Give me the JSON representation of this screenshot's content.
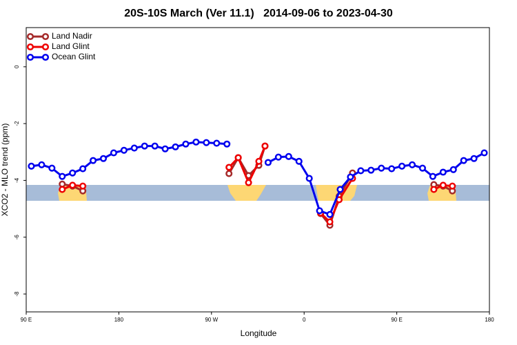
{
  "chart_data": {
    "type": "line",
    "title": "20S-10S March (Ver 11.1)   2014-09-06 to 2023-04-30",
    "x_label": "Longitude",
    "y_label": "XCO2 - MLO trend (ppm)",
    "xlim": [
      90,
      540
    ],
    "xticks": [
      {
        "value": 90,
        "label": "90 E"
      },
      180,
      {
        "value": 270,
        "label": "90 W"
      },
      {
        "value": 360,
        "label": "0"
      },
      {
        "value": 450,
        "label": "90 E"
      },
      180.0001
    ],
    "ylim": [
      -8.63,
      1.38
    ],
    "yticks": [
      0,
      -2,
      -4,
      -6,
      -8
    ],
    "legend": "top-left",
    "series": [
      {
        "name": "Land Nadir",
        "color": "#a52a2a",
        "x": [
          125,
          135,
          145,
          null,
          287,
          296,
          306,
          316,
          322,
          null,
          376,
          385,
          394,
          407,
          null,
          486,
          495,
          504
        ],
        "values": [
          -4.13,
          -4.2,
          -4.37,
          null,
          -3.76,
          -3.2,
          -3.83,
          -3.47,
          -2.79,
          null,
          -5.17,
          -5.58,
          -4.56,
          -3.74,
          null,
          -4.15,
          -4.2,
          -4.37
        ]
      },
      {
        "name": "Land Glint",
        "color": "#ee0000",
        "x": [
          125,
          135,
          145,
          null,
          287,
          296,
          306,
          316,
          322,
          null,
          376,
          385,
          394,
          407,
          null,
          486,
          495,
          504
        ],
        "values": [
          -4.32,
          -4.17,
          -4.2,
          null,
          -3.54,
          -3.2,
          -4.08,
          -3.33,
          -2.79,
          null,
          -5.15,
          -5.46,
          -4.68,
          -3.93,
          null,
          -4.32,
          -4.17,
          -4.2
        ]
      },
      {
        "name": "Ocean Glint",
        "color": "#0000ee",
        "x": [
          95,
          105,
          115,
          125,
          135,
          145,
          155,
          165,
          175,
          185,
          195,
          205,
          215,
          225,
          235,
          245,
          255,
          265,
          275,
          285,
          295,
          305,
          315,
          325,
          335,
          345,
          355,
          365,
          375,
          385,
          395,
          405,
          415,
          425,
          435,
          445,
          455,
          465,
          475,
          485,
          495,
          505,
          515,
          525,
          535
        ],
        "values": [
          -3.5,
          -3.45,
          -3.57,
          -3.86,
          -3.74,
          -3.59,
          -3.3,
          -3.23,
          -3.03,
          -2.94,
          -2.86,
          -2.79,
          -2.79,
          -2.89,
          -2.82,
          -2.72,
          -2.65,
          -2.67,
          -2.69,
          -2.72,
          null,
          null,
          null,
          -3.37,
          -3.18,
          -3.16,
          -3.33,
          -3.93,
          -5.07,
          -5.2,
          -4.32,
          -3.88,
          -3.66,
          -3.64,
          -3.57,
          -3.59,
          -3.5,
          -3.45,
          -3.57,
          -3.86,
          -3.71,
          -3.62,
          -3.3,
          -3.23,
          -3.03
        ]
      }
    ]
  }
}
